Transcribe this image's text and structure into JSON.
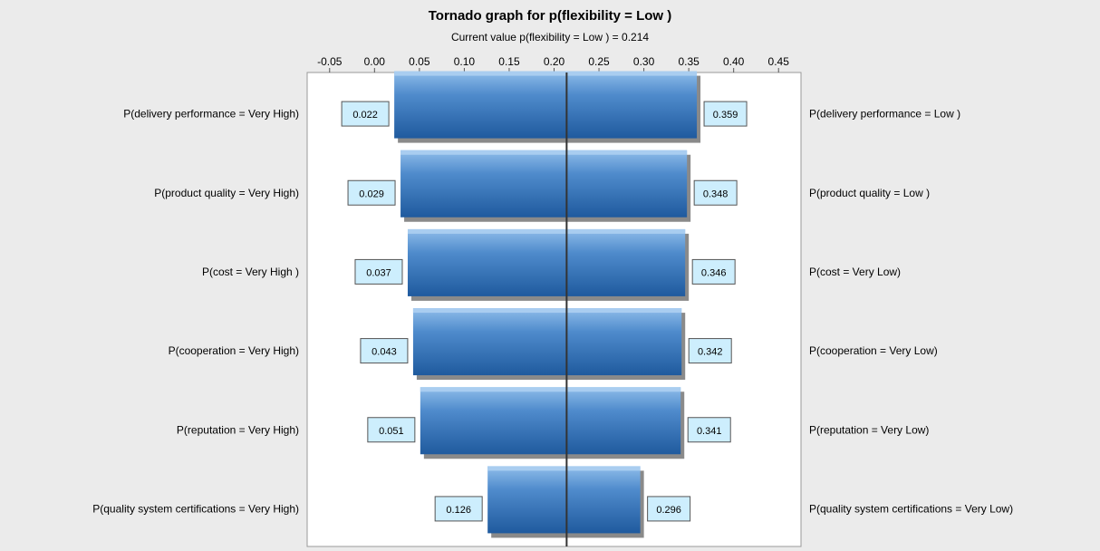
{
  "colors": {
    "background": "#ebebeb",
    "plot_background": "#ffffff",
    "bar_light": "#6fa6dc",
    "bar_dark": "#1f5a9e",
    "bar_shadow": "#8a8a8a",
    "label_box_fill": "#cdeefd",
    "label_box_stroke": "#555555",
    "baseline": "#333333"
  },
  "chart_data": {
    "type": "tornado",
    "title": "Tornado graph for p(flexibility = Low )",
    "subtitle": "Current value p(flexibility = Low ) = 0.214",
    "baseline": 0.214,
    "xlim": [
      -0.075,
      0.475
    ],
    "xticks": [
      -0.05,
      0.0,
      0.05,
      0.1,
      0.15,
      0.2,
      0.25,
      0.3,
      0.35,
      0.4,
      0.45
    ],
    "xtick_labels": [
      "-0.05",
      "0.00",
      "0.05",
      "0.10",
      "0.15",
      "0.20",
      "0.25",
      "0.30",
      "0.35",
      "0.40",
      "0.45"
    ],
    "grid": false,
    "bars": [
      {
        "left_label": "P(delivery performance = Very High)",
        "right_label": "P(delivery performance = Low )",
        "low": 0.022,
        "high": 0.359,
        "low_text": "0.022",
        "high_text": "0.359"
      },
      {
        "left_label": "P(product quality = Very High)",
        "right_label": "P(product quality = Low )",
        "low": 0.029,
        "high": 0.348,
        "low_text": "0.029",
        "high_text": "0.348"
      },
      {
        "left_label": "P(cost = Very High )",
        "right_label": "P(cost = Very Low)",
        "low": 0.037,
        "high": 0.346,
        "low_text": "0.037",
        "high_text": "0.346"
      },
      {
        "left_label": "P(cooperation = Very High)",
        "right_label": "P(cooperation = Very Low)",
        "low": 0.043,
        "high": 0.342,
        "low_text": "0.043",
        "high_text": "0.342"
      },
      {
        "left_label": "P(reputation = Very High)",
        "right_label": "P(reputation = Very Low)",
        "low": 0.051,
        "high": 0.341,
        "low_text": "0.051",
        "high_text": "0.341"
      },
      {
        "left_label": "P(quality system certifications = Very High)",
        "right_label": "P(quality system certifications = Very Low)",
        "low": 0.126,
        "high": 0.296,
        "low_text": "0.126",
        "high_text": "0.296"
      }
    ]
  }
}
